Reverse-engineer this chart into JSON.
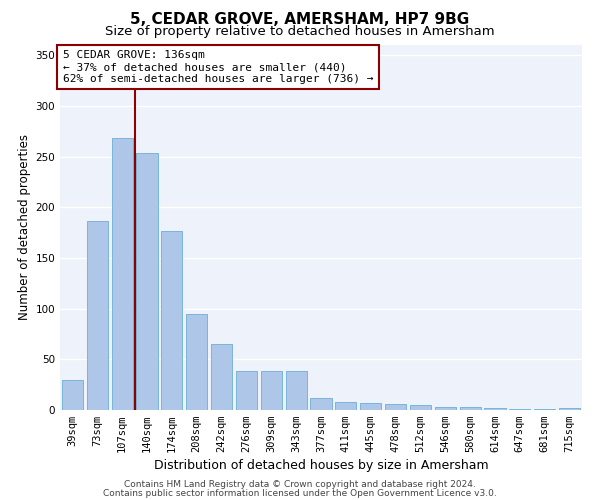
{
  "title": "5, CEDAR GROVE, AMERSHAM, HP7 9BG",
  "subtitle": "Size of property relative to detached houses in Amersham",
  "xlabel": "Distribution of detached houses by size in Amersham",
  "ylabel": "Number of detached properties",
  "categories": [
    "39sqm",
    "73sqm",
    "107sqm",
    "140sqm",
    "174sqm",
    "208sqm",
    "242sqm",
    "276sqm",
    "309sqm",
    "343sqm",
    "377sqm",
    "411sqm",
    "445sqm",
    "478sqm",
    "512sqm",
    "546sqm",
    "580sqm",
    "614sqm",
    "647sqm",
    "681sqm",
    "715sqm"
  ],
  "values": [
    30,
    186,
    268,
    253,
    177,
    95,
    65,
    38,
    38,
    38,
    12,
    8,
    7,
    6,
    5,
    3,
    3,
    2,
    1,
    1,
    2
  ],
  "bar_color": "#aec6e8",
  "bar_edge_color": "#6baed6",
  "bg_color": "#eef2fb",
  "grid_color": "#ffffff",
  "vline_index": 2.5,
  "vline_color": "#8b0000",
  "annotation_box_text": "5 CEDAR GROVE: 136sqm\n← 37% of detached houses are smaller (440)\n62% of semi-detached houses are larger (736) →",
  "annotation_box_color": "#8b0000",
  "ylim": [
    0,
    360
  ],
  "yticks": [
    0,
    50,
    100,
    150,
    200,
    250,
    300,
    350
  ],
  "footnote1": "Contains HM Land Registry data © Crown copyright and database right 2024.",
  "footnote2": "Contains public sector information licensed under the Open Government Licence v3.0.",
  "title_fontsize": 11,
  "subtitle_fontsize": 9.5,
  "xlabel_fontsize": 9,
  "ylabel_fontsize": 8.5,
  "tick_fontsize": 7.5,
  "annot_fontsize": 8,
  "footnote_fontsize": 6.5
}
